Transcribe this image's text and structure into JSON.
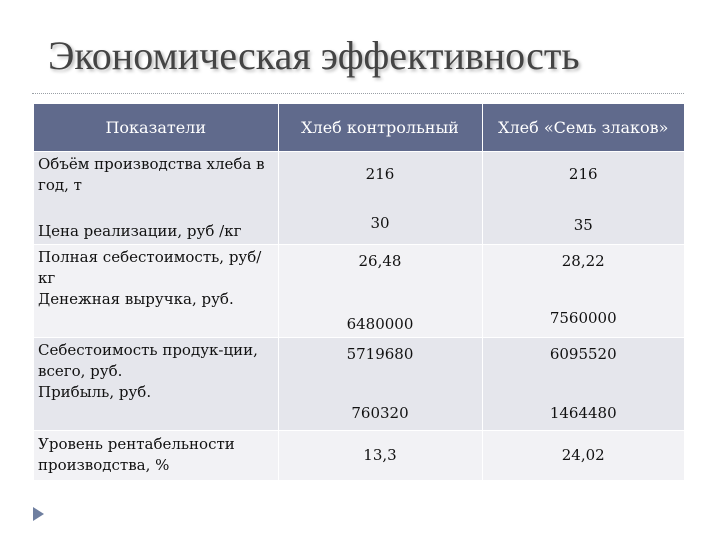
{
  "slide": {
    "title": "Экономическая эффективность"
  },
  "table": {
    "headers": [
      "Показатели",
      "Хлеб контрольный",
      "Хлеб «Семь злаков»"
    ],
    "rows": [
      {
        "labels": [
          "Объём производства хлеба в год, т",
          "Цена реализации, руб /кг"
        ],
        "control": [
          "216",
          "30"
        ],
        "seven": [
          "216",
          "35"
        ]
      },
      {
        "labels": [
          "Полная себестоимость, руб/кг",
          "Денежная выручка, руб."
        ],
        "control": [
          "26,48",
          "6480000"
        ],
        "seven": [
          "28,22",
          "7560000"
        ]
      },
      {
        "labels": [
          "Себестоимость продук-ции, всего, руб.",
          "Прибыль,  руб."
        ],
        "control": [
          "5719680",
          "760320"
        ],
        "seven": [
          "6095520",
          "1464480"
        ]
      },
      {
        "labels": [
          "Уровень рентабельности производства, %"
        ],
        "control": [
          "13,3"
        ],
        "seven": [
          "24,02"
        ]
      }
    ]
  },
  "bullet": {
    "icon": "triangle-bullet-icon",
    "color": "#6f7fa0"
  },
  "colors": {
    "header_bg": "#606a8c",
    "row_odd": "#e5e6ec",
    "row_even": "#f2f2f5"
  }
}
